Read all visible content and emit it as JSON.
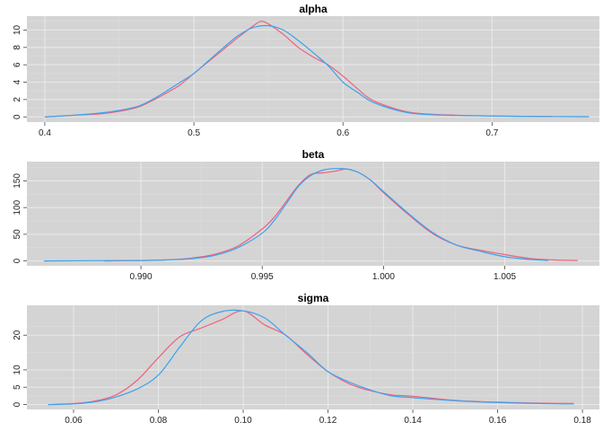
{
  "colors": {
    "chain1": "#f0607a",
    "chain2": "#3aa3f0"
  },
  "chart_data": [
    {
      "type": "line",
      "title": "alpha",
      "xlim": [
        0.388,
        0.772
      ],
      "ylim": [
        -0.6,
        11.6
      ],
      "xticks": [
        0.4,
        0.5,
        0.6,
        0.7
      ],
      "xtick_labels": [
        "0.4",
        "0.5",
        "0.6",
        "0.7"
      ],
      "yticks": [
        0,
        2,
        4,
        6,
        8,
        10
      ],
      "ytick_labels": [
        "0",
        "2",
        "4",
        "6",
        "8",
        "10"
      ],
      "grid": true,
      "series": [
        {
          "x": [
            0.4,
            0.42,
            0.44,
            0.46,
            0.47,
            0.48,
            0.49,
            0.5,
            0.51,
            0.52,
            0.53,
            0.54,
            0.545,
            0.55,
            0.56,
            0.57,
            0.58,
            0.59,
            0.6,
            0.61,
            0.62,
            0.64,
            0.66,
            0.7,
            0.74
          ],
          "y": [
            0,
            0.2,
            0.4,
            1.0,
            1.7,
            2.6,
            3.6,
            5.0,
            6.4,
            7.8,
            9.2,
            10.5,
            11.0,
            10.7,
            9.5,
            8.0,
            6.9,
            6.0,
            4.7,
            3.2,
            1.9,
            0.7,
            0.3,
            0.1,
            0.05
          ]
        },
        {
          "x": [
            0.4,
            0.42,
            0.44,
            0.46,
            0.47,
            0.48,
            0.49,
            0.5,
            0.51,
            0.52,
            0.53,
            0.54,
            0.55,
            0.56,
            0.57,
            0.58,
            0.59,
            0.6,
            0.61,
            0.62,
            0.64,
            0.66,
            0.7,
            0.74,
            0.765
          ],
          "y": [
            0,
            0.2,
            0.5,
            1.1,
            1.8,
            2.8,
            3.9,
            5.0,
            6.5,
            8.0,
            9.4,
            10.3,
            10.5,
            10.0,
            8.8,
            7.4,
            5.9,
            4.0,
            2.8,
            1.7,
            0.6,
            0.25,
            0.1,
            0.04,
            0.02
          ]
        }
      ]
    },
    {
      "type": "line",
      "title": "beta",
      "xlim": [
        0.9853,
        1.0089
      ],
      "ylim": [
        -9,
        186
      ],
      "xticks": [
        0.99,
        0.995,
        1.0,
        1.005
      ],
      "xtick_labels": [
        "0.990",
        "0.995",
        "1.000",
        "1.005"
      ],
      "yticks": [
        0,
        50,
        100,
        150
      ],
      "ytick_labels": [
        "0",
        "50",
        "100",
        "150"
      ],
      "grid": true,
      "series": [
        {
          "x": [
            0.9885,
            0.99,
            0.991,
            0.992,
            0.993,
            0.994,
            0.995,
            0.9955,
            0.996,
            0.9965,
            0.997,
            0.9975,
            0.998,
            0.9985,
            0.999,
            0.9995,
            1.0,
            1.001,
            1.002,
            1.003,
            1.004,
            1.005,
            1.006,
            1.007,
            1.008
          ],
          "y": [
            0,
            1,
            2,
            5,
            12,
            28,
            60,
            82,
            112,
            142,
            162,
            165,
            168,
            172,
            165,
            150,
            128,
            88,
            52,
            30,
            20,
            12,
            5,
            2,
            1
          ]
        },
        {
          "x": [
            0.986,
            0.988,
            0.99,
            0.991,
            0.992,
            0.993,
            0.994,
            0.995,
            0.9955,
            0.996,
            0.9965,
            0.997,
            0.9975,
            0.998,
            0.9985,
            0.999,
            0.9995,
            1.0,
            1.001,
            1.002,
            1.003,
            1.004,
            1.005,
            1.006,
            1.0068
          ],
          "y": [
            0,
            0.5,
            1,
            2,
            4,
            10,
            25,
            52,
            76,
            108,
            140,
            160,
            170,
            173,
            172,
            165,
            150,
            130,
            90,
            54,
            30,
            18,
            8,
            3,
            1
          ]
        }
      ]
    },
    {
      "type": "line",
      "title": "sigma",
      "xlim": [
        0.049,
        0.184
      ],
      "ylim": [
        -1.4,
        28.6
      ],
      "xticks": [
        0.06,
        0.08,
        0.1,
        0.12,
        0.14,
        0.16,
        0.18
      ],
      "xtick_labels": [
        "0.06",
        "0.08",
        "0.10",
        "0.12",
        "0.14",
        "0.16",
        "0.18"
      ],
      "yticks": [
        0,
        5,
        10,
        20
      ],
      "ytick_labels": [
        "0",
        "5",
        "10",
        "20"
      ],
      "grid": true,
      "series": [
        {
          "x": [
            0.054,
            0.06,
            0.065,
            0.07,
            0.075,
            0.08,
            0.085,
            0.09,
            0.095,
            0.1,
            0.105,
            0.11,
            0.115,
            0.12,
            0.125,
            0.13,
            0.135,
            0.14,
            0.15,
            0.16,
            0.17,
            0.178
          ],
          "y": [
            0,
            0.3,
            1.0,
            2.8,
            7.0,
            13.5,
            19.5,
            22.0,
            24.5,
            27.0,
            23.0,
            20.0,
            14.5,
            9.5,
            6.0,
            4.0,
            2.8,
            2.4,
            1.2,
            0.7,
            0.4,
            0.3
          ]
        },
        {
          "x": [
            0.054,
            0.06,
            0.065,
            0.07,
            0.075,
            0.08,
            0.085,
            0.09,
            0.095,
            0.1,
            0.105,
            0.11,
            0.115,
            0.12,
            0.125,
            0.13,
            0.135,
            0.14,
            0.15,
            0.16,
            0.17,
            0.178
          ],
          "y": [
            0,
            0.2,
            0.8,
            2.2,
            4.5,
            8.5,
            16.5,
            24.0,
            26.8,
            27.0,
            25.0,
            20.0,
            15.0,
            9.5,
            6.5,
            4.2,
            2.5,
            2.0,
            1.1,
            0.6,
            0.3,
            0.2
          ]
        }
      ]
    }
  ]
}
